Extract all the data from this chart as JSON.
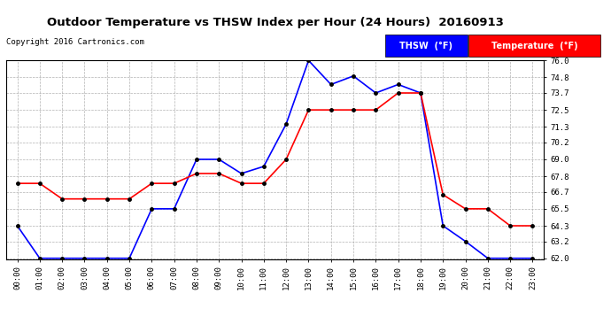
{
  "title": "Outdoor Temperature vs THSW Index per Hour (24 Hours)  20160913",
  "copyright": "Copyright 2016 Cartronics.com",
  "background_color": "#ffffff",
  "plot_bg_color": "#ffffff",
  "grid_color": "#aaaaaa",
  "hours": [
    "00:00",
    "01:00",
    "02:00",
    "03:00",
    "04:00",
    "05:00",
    "06:00",
    "07:00",
    "08:00",
    "09:00",
    "10:00",
    "11:00",
    "12:00",
    "13:00",
    "14:00",
    "15:00",
    "16:00",
    "17:00",
    "18:00",
    "19:00",
    "20:00",
    "21:00",
    "22:00",
    "23:00"
  ],
  "thsw": [
    64.3,
    62.0,
    62.0,
    62.0,
    62.0,
    62.0,
    65.5,
    65.5,
    69.0,
    69.0,
    68.0,
    68.5,
    71.5,
    76.0,
    74.3,
    74.9,
    73.7,
    74.3,
    73.7,
    64.3,
    63.2,
    62.0,
    62.0,
    62.0
  ],
  "temperature": [
    67.3,
    67.3,
    66.2,
    66.2,
    66.2,
    66.2,
    67.3,
    67.3,
    68.0,
    68.0,
    67.3,
    67.3,
    69.0,
    72.5,
    72.5,
    72.5,
    72.5,
    73.7,
    73.7,
    66.5,
    65.5,
    65.5,
    64.3,
    64.3
  ],
  "thsw_color": "#0000ff",
  "temp_color": "#ff0000",
  "marker_color": "#000000",
  "ylim_min": 62.0,
  "ylim_max": 76.0,
  "yticks": [
    62.0,
    63.2,
    64.3,
    65.5,
    66.7,
    67.8,
    69.0,
    70.2,
    71.3,
    72.5,
    73.7,
    74.8,
    76.0
  ],
  "legend_thsw_bg": "#0000ff",
  "legend_thsw_text": "THSW  (°F)",
  "legend_temp_bg": "#ff0000",
  "legend_temp_text": "Temperature  (°F)"
}
